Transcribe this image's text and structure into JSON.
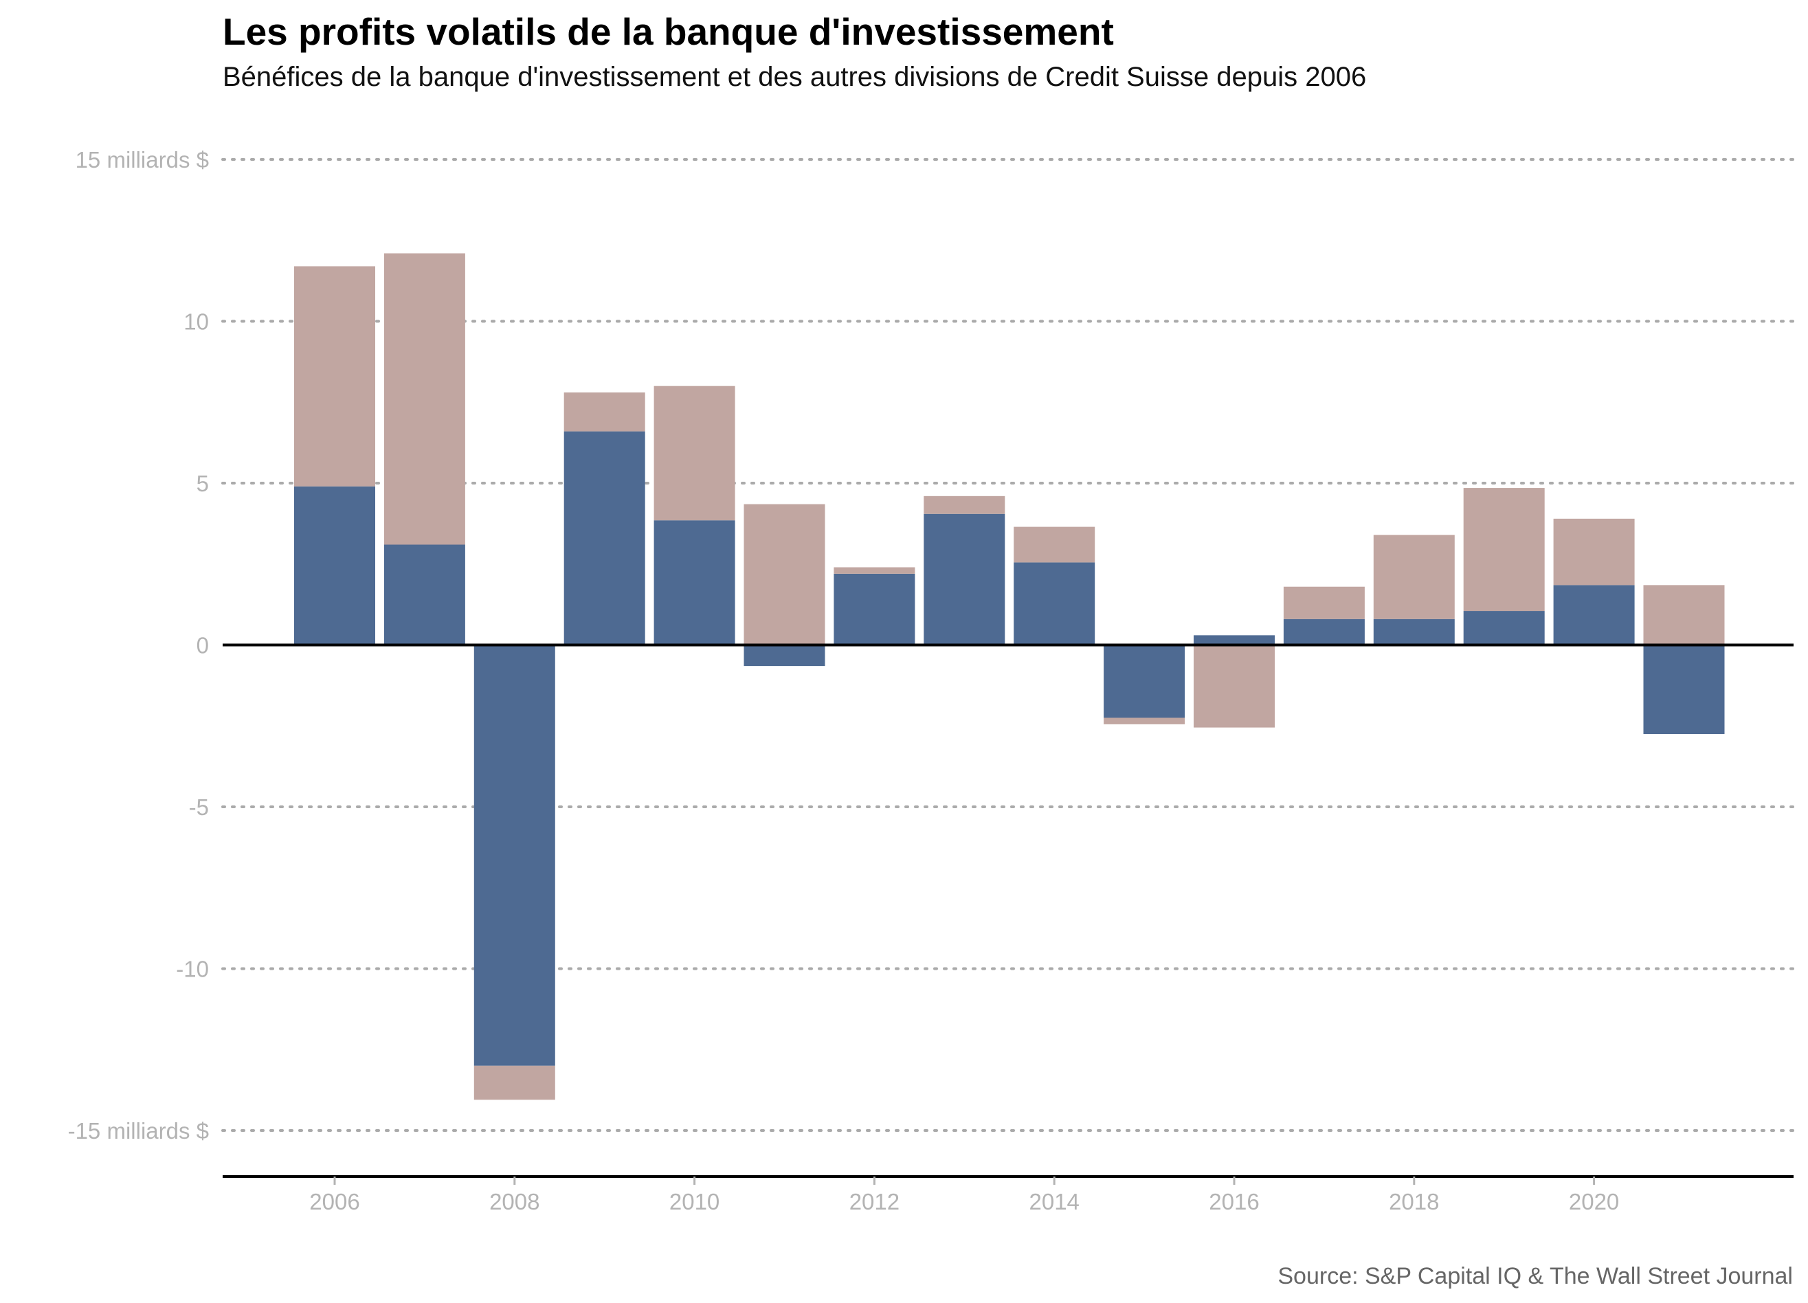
{
  "chart_data": {
    "type": "bar",
    "stacked": true,
    "title": "Les profits volatils de la banque d'investissement",
    "subtitle": "Bénéfices de la banque d'investissement et des autres divisions de Credit Suisse depuis 2006",
    "source": "Source: S&P Capital IQ & The Wall Street Journal",
    "categories": [
      "2006",
      "2007",
      "2008",
      "2009",
      "2010",
      "2011",
      "2012",
      "2013",
      "2014",
      "2015",
      "2016",
      "2017",
      "2018",
      "2019",
      "2020",
      "2021"
    ],
    "series": [
      {
        "values": [
          4.9,
          3.1,
          -13.0,
          6.6,
          3.85,
          -0.65,
          2.2,
          4.05,
          2.55,
          -2.25,
          0.3,
          0.8,
          0.8,
          1.05,
          1.85,
          -2.75
        ],
        "color": "#4e6a92"
      },
      {
        "values": [
          6.8,
          9.0,
          -1.05,
          1.2,
          4.15,
          4.35,
          0.2,
          0.55,
          1.1,
          -0.2,
          -2.55,
          1.0,
          2.6,
          3.8,
          2.05,
          1.85
        ],
        "color": "#c1a6a1"
      }
    ],
    "ylim": [
      -15,
      15
    ],
    "yticks": [
      15,
      10,
      5,
      0,
      -5,
      -10,
      -15
    ],
    "ytick_labels": [
      "15 milliards $",
      "10",
      "5",
      "0",
      "-5",
      "-10",
      "-15 milliards $"
    ],
    "xticks": [
      "2006",
      "2008",
      "2010",
      "2012",
      "2014",
      "2016",
      "2018",
      "2020"
    ],
    "grid": true
  }
}
